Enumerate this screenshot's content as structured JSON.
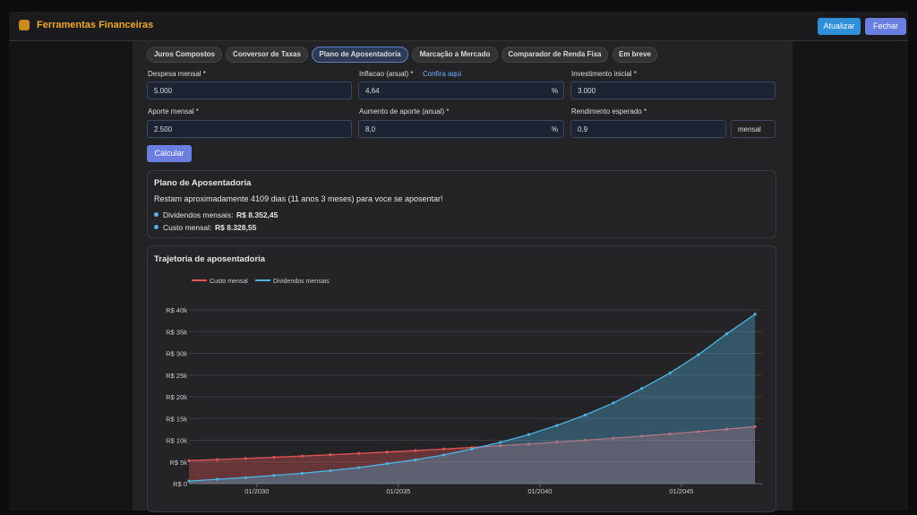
{
  "header": {
    "title": "Ferramentas Financeiras",
    "buttons": [
      "Atualizar",
      "Fechar"
    ]
  },
  "tabs": [
    "Juros Compostos",
    "Conversor de Taxas",
    "Plano de Aposentadoria",
    "Marcação a Mercado",
    "Comparador de Renda Fixa",
    "Em breve"
  ],
  "form": {
    "fields": [
      {
        "label": "Despesa mensal *",
        "value": "5.000"
      },
      {
        "label": "Inflacao (anual) *",
        "link": "Confira aqui",
        "value": "4,64",
        "suffix": "%"
      },
      {
        "label": "Investimento inicial *",
        "value": "3.000"
      },
      {
        "label": "Aporte mensal *",
        "value": "2.500"
      },
      {
        "label": "Aumento de aporte (anual) *",
        "value": "8,0",
        "suffix": "%"
      },
      {
        "label": "Rendimento esperado *",
        "value": "0,9",
        "select": "mensal"
      }
    ],
    "button": "Calcular"
  },
  "result": {
    "title": "Plano de Aposentadoria",
    "message": "Restam aproximadamente 4109 dias (11 anos 3 meses) para voce se aposentar!",
    "items": [
      {
        "label": "Dividendos mensais:",
        "value": "R$ 8.352,45"
      },
      {
        "label": "Custo mensal:",
        "value": "R$ 8.328,55"
      }
    ]
  },
  "chart_data": {
    "type": "line",
    "title": "Trajetoria de aposentadoria",
    "x": [
      2027.6,
      2028.6,
      2029.6,
      2030.6,
      2031.6,
      2032.6,
      2033.6,
      2034.6,
      2035.6,
      2036.6,
      2037.6,
      2038.6,
      2039.6,
      2040.6,
      2041.6,
      2042.6,
      2043.6,
      2044.6,
      2045.6,
      2046.6,
      2047.6
    ],
    "series": [
      {
        "name": "Custo mensal",
        "color": "#e05555",
        "values": [
          5300,
          5550,
          5800,
          6070,
          6350,
          6650,
          6960,
          7280,
          7620,
          7970,
          8340,
          8730,
          9130,
          9560,
          10000,
          10460,
          10950,
          11460,
          11990,
          12550,
          13130
        ]
      },
      {
        "name": "Dividendos mensais",
        "color": "#4fb3e0",
        "values": [
          600,
          1000,
          1400,
          1900,
          2400,
          3000,
          3700,
          4600,
          5500,
          6600,
          8000,
          9500,
          11300,
          13400,
          15800,
          18600,
          21900,
          25500,
          29700,
          34500,
          39000
        ]
      }
    ],
    "xlim": [
      2027.6,
      2047.85
    ],
    "xticks": [
      {
        "value": 2030,
        "label": "01/2030"
      },
      {
        "value": 2035,
        "label": "01/2035"
      },
      {
        "value": 2040,
        "label": "01/2040"
      },
      {
        "value": 2045,
        "label": "01/2045"
      }
    ],
    "ylim": [
      0,
      40000
    ],
    "yticks": [
      {
        "value": 0,
        "label": "R$ 0"
      },
      {
        "value": 5000,
        "label": "R$ 5k"
      },
      {
        "value": 10000,
        "label": "R$ 10k"
      },
      {
        "value": 15000,
        "label": "R$ 15k"
      },
      {
        "value": 20000,
        "label": "R$ 20k"
      },
      {
        "value": 25000,
        "label": "R$ 25k"
      },
      {
        "value": 30000,
        "label": "R$ 30k"
      },
      {
        "value": 35000,
        "label": "R$ 35k"
      },
      {
        "value": 40000,
        "label": "R$ 40k"
      }
    ],
    "grid": true
  }
}
